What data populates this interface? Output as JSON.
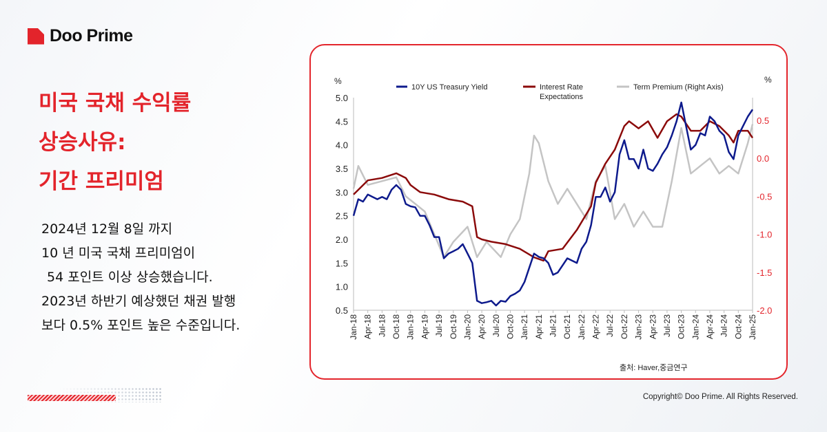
{
  "brand": {
    "name": "Doo Prime",
    "accent": "#e3242b"
  },
  "title_lines": [
    "미국 국채 수익률",
    "상승사유:",
    "기간 프리미엄"
  ],
  "body_lines": [
    "2024년 12월 8일 까지",
    "10 년 미국 국채 프리미엄이",
    "54 포인트 이상 상승했습니다.",
    "2023년 하반기 예상했던 채권 발행",
    "보다 0.5% 포인트 높은 수준입니다."
  ],
  "copyright": "Copyright© Doo Prime. All Rights Reserved.",
  "chart_data": {
    "type": "line",
    "left_unit": "%",
    "right_unit": "%",
    "left_ylim": [
      0.5,
      5.0
    ],
    "left_ticks": [
      "5.0",
      "4.5",
      "4.0",
      "3.5",
      "3.0",
      "2.5",
      "2.0",
      "1.5",
      "1.0",
      "0.5"
    ],
    "right_ylim": [
      -2.0,
      0.5
    ],
    "right_ticks": [
      "0.5",
      "0.0",
      "-0.5",
      "-1.0",
      "-1.5",
      "-2.0"
    ],
    "right_tick_color": "#e3242b",
    "x_ticks": [
      "Jan-18",
      "Apr-18",
      "Jul-18",
      "Oct-18",
      "Jan-19",
      "Apr-19",
      "Jul-19",
      "Oct-19",
      "Jan-20",
      "Apr-20",
      "Jul-20",
      "Oct-20",
      "Jan-21",
      "Apr-21",
      "Jul-21",
      "Oct-21",
      "Jan-22",
      "Apr-22",
      "Jul-22",
      "Oct-22",
      "Jan-23",
      "Apr-23",
      "Jul-23",
      "Oct-23",
      "Jan-24",
      "Apr-24",
      "Jul-24",
      "Oct-24",
      "Jan-25"
    ],
    "legend_position": "top",
    "source": "출처:  Haver,중금연구",
    "series": [
      {
        "name": "10Y US Treasury Yield",
        "axis": "left",
        "color": "#0d1a8c",
        "x": [
          "2018-01",
          "2018-02",
          "2018-03",
          "2018-04",
          "2018-05",
          "2018-06",
          "2018-07",
          "2018-08",
          "2018-09",
          "2018-10",
          "2018-11",
          "2018-12",
          "2019-01",
          "2019-02",
          "2019-03",
          "2019-04",
          "2019-05",
          "2019-06",
          "2019-07",
          "2019-08",
          "2019-09",
          "2019-10",
          "2019-11",
          "2019-12",
          "2020-01",
          "2020-02",
          "2020-03",
          "2020-04",
          "2020-05",
          "2020-06",
          "2020-07",
          "2020-08",
          "2020-09",
          "2020-10",
          "2020-11",
          "2020-12",
          "2021-01",
          "2021-02",
          "2021-03",
          "2021-04",
          "2021-05",
          "2021-06",
          "2021-07",
          "2021-08",
          "2021-09",
          "2021-10",
          "2021-11",
          "2021-12",
          "2022-01",
          "2022-02",
          "2022-03",
          "2022-04",
          "2022-05",
          "2022-06",
          "2022-07",
          "2022-08",
          "2022-09",
          "2022-10",
          "2022-11",
          "2022-12",
          "2023-01",
          "2023-02",
          "2023-03",
          "2023-04",
          "2023-05",
          "2023-06",
          "2023-07",
          "2023-08",
          "2023-09",
          "2023-10",
          "2023-11",
          "2023-12",
          "2024-01",
          "2024-02",
          "2024-03",
          "2024-04",
          "2024-05",
          "2024-06",
          "2024-07",
          "2024-08",
          "2024-09",
          "2024-10",
          "2024-11",
          "2024-12",
          "2025-01"
        ],
        "y": [
          2.5,
          2.85,
          2.8,
          2.95,
          2.9,
          2.85,
          2.9,
          2.85,
          3.05,
          3.15,
          3.05,
          2.75,
          2.7,
          2.68,
          2.5,
          2.5,
          2.3,
          2.05,
          2.05,
          1.6,
          1.7,
          1.75,
          1.8,
          1.9,
          1.7,
          1.5,
          0.7,
          0.65,
          0.67,
          0.7,
          0.6,
          0.7,
          0.68,
          0.8,
          0.85,
          0.92,
          1.1,
          1.4,
          1.7,
          1.63,
          1.6,
          1.5,
          1.25,
          1.3,
          1.45,
          1.6,
          1.55,
          1.5,
          1.8,
          1.95,
          2.3,
          2.9,
          2.9,
          3.1,
          2.8,
          3.0,
          3.8,
          4.1,
          3.7,
          3.7,
          3.5,
          3.9,
          3.5,
          3.45,
          3.6,
          3.8,
          3.95,
          4.2,
          4.5,
          4.9,
          4.4,
          3.9,
          4.0,
          4.25,
          4.2,
          4.6,
          4.5,
          4.3,
          4.2,
          3.85,
          3.7,
          4.2,
          4.4,
          4.6,
          4.75
        ]
      },
      {
        "name": "Interest Rate Expectations",
        "axis": "left",
        "color": "#8b0a0a",
        "x": [
          "2018-01",
          "2018-04",
          "2018-07",
          "2018-10",
          "2018-12",
          "2019-01",
          "2019-03",
          "2019-06",
          "2019-09",
          "2019-12",
          "2020-02",
          "2020-03",
          "2020-04",
          "2020-06",
          "2020-09",
          "2020-12",
          "2021-03",
          "2021-05",
          "2021-06",
          "2021-09",
          "2021-12",
          "2022-03",
          "2022-04",
          "2022-06",
          "2022-08",
          "2022-10",
          "2022-11",
          "2023-01",
          "2023-03",
          "2023-05",
          "2023-07",
          "2023-09",
          "2023-10",
          "2023-12",
          "2024-02",
          "2024-04",
          "2024-06",
          "2024-08",
          "2024-09",
          "2024-10",
          "2024-12",
          "2025-01"
        ],
        "y": [
          2.95,
          3.25,
          3.3,
          3.4,
          3.3,
          3.15,
          3.0,
          2.95,
          2.85,
          2.8,
          2.7,
          2.05,
          2.0,
          1.95,
          1.9,
          1.8,
          1.62,
          1.55,
          1.75,
          1.8,
          2.2,
          2.7,
          3.2,
          3.6,
          3.9,
          4.4,
          4.5,
          4.35,
          4.5,
          4.15,
          4.5,
          4.65,
          4.6,
          4.3,
          4.3,
          4.5,
          4.4,
          4.2,
          4.05,
          4.3,
          4.3,
          4.15
        ]
      },
      {
        "name": "Term Premium (Right Axis)",
        "axis": "right",
        "color": "#c4c4c4",
        "x": [
          "2018-01",
          "2018-02",
          "2018-04",
          "2018-07",
          "2018-10",
          "2018-12",
          "2019-02",
          "2019-04",
          "2019-06",
          "2019-08",
          "2019-10",
          "2020-01",
          "2020-03",
          "2020-05",
          "2020-08",
          "2020-10",
          "2020-12",
          "2021-02",
          "2021-03",
          "2021-04",
          "2021-06",
          "2021-08",
          "2021-10",
          "2021-12",
          "2022-02",
          "2022-04",
          "2022-06",
          "2022-08",
          "2022-10",
          "2022-12",
          "2023-02",
          "2023-04",
          "2023-06",
          "2023-08",
          "2023-10",
          "2023-12",
          "2024-02",
          "2024-04",
          "2024-06",
          "2024-08",
          "2024-10",
          "2024-12",
          "2025-01"
        ],
        "y": [
          -0.4,
          -0.1,
          -0.35,
          -0.3,
          -0.25,
          -0.5,
          -0.6,
          -0.7,
          -1.0,
          -1.3,
          -1.1,
          -0.9,
          -1.3,
          -1.1,
          -1.3,
          -1.0,
          -0.8,
          -0.2,
          0.3,
          0.2,
          -0.3,
          -0.6,
          -0.4,
          -0.6,
          -0.8,
          -0.3,
          -0.1,
          -0.8,
          -0.6,
          -0.9,
          -0.7,
          -0.9,
          -0.9,
          -0.3,
          0.4,
          -0.2,
          -0.1,
          0.0,
          -0.2,
          -0.1,
          -0.2,
          0.2,
          0.45
        ]
      }
    ]
  }
}
